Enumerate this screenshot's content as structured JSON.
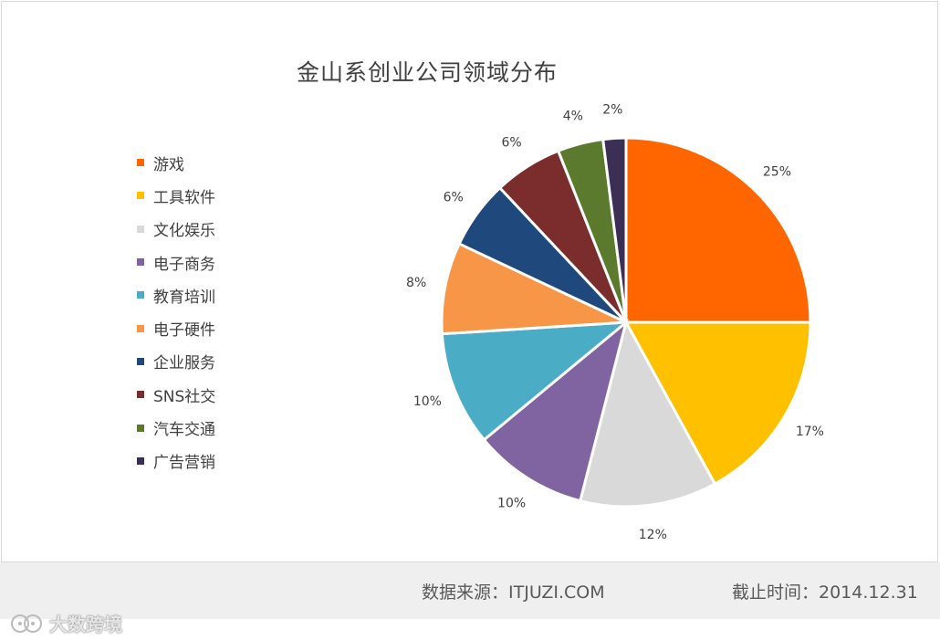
{
  "chart_data": {
    "type": "pie",
    "title": "金山系创业公司领域分布",
    "legend_position": "left",
    "categories": [
      "游戏",
      "工具软件",
      "文化娱乐",
      "电子商务",
      "教育培训",
      "电子硬件",
      "企业服务",
      "SNS社交",
      "汽车交通",
      "广告营销"
    ],
    "values": [
      25,
      17,
      12,
      10,
      10,
      8,
      6,
      6,
      4,
      2
    ],
    "labels": [
      "25%",
      "17%",
      "12%",
      "10%",
      "10%",
      "8%",
      "6%",
      "6%",
      "4%",
      "2%"
    ],
    "colors": [
      "#ff6600",
      "#ffc000",
      "#d9d9d9",
      "#8064a2",
      "#4bacc6",
      "#f79646",
      "#1f497d",
      "#7b2c2c",
      "#5b7a2e",
      "#3c2f55"
    ]
  },
  "footer": {
    "source": "数据来源：ITJUZI.COM",
    "date": "截止时间：2014.12.31"
  },
  "watermark": {
    "text": "大数跨境"
  }
}
